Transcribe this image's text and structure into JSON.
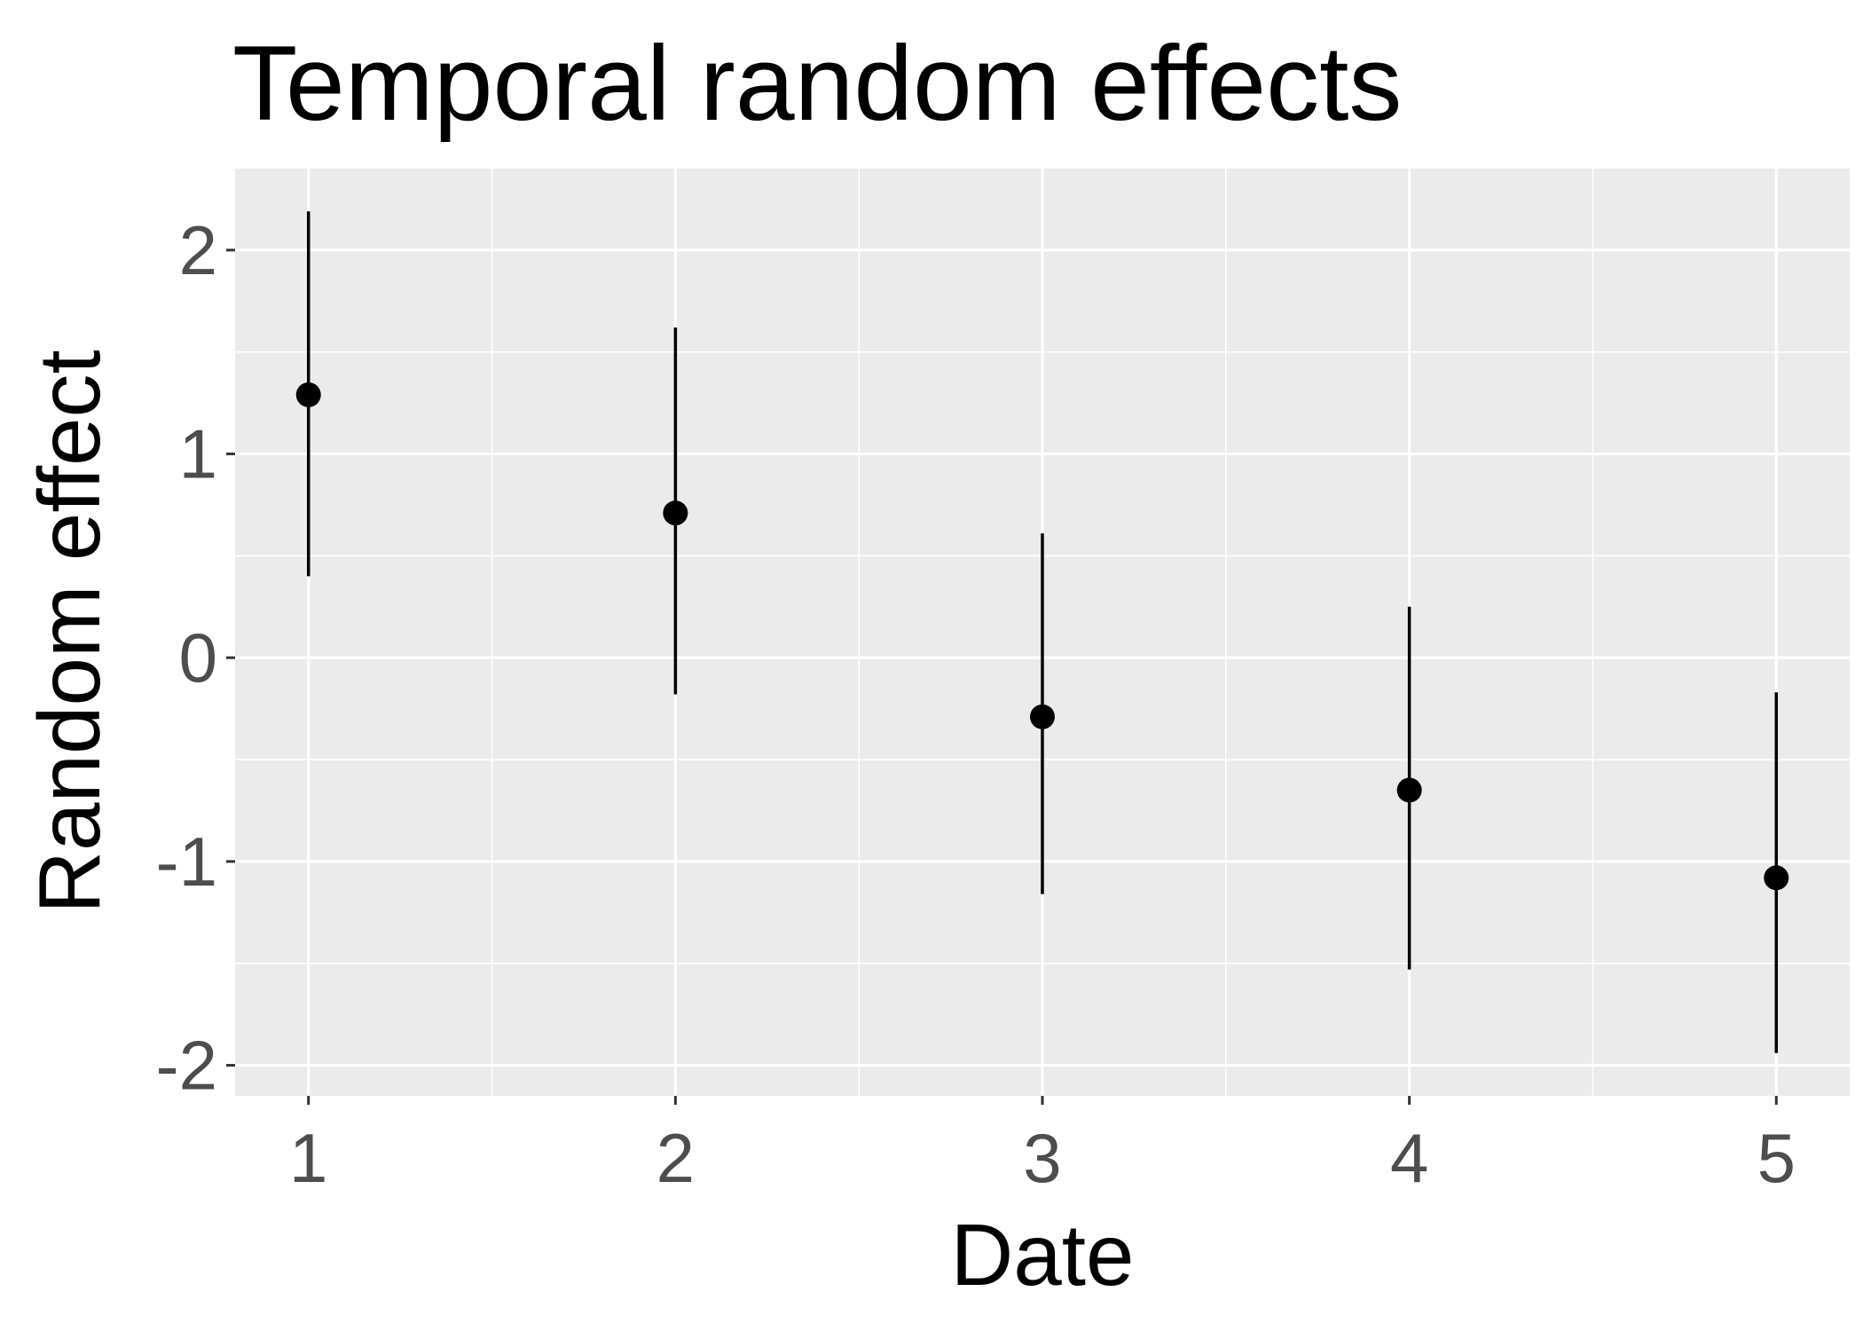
{
  "chart_data": {
    "type": "scatter",
    "title": "Temporal random effects",
    "xlabel": "Date",
    "ylabel": "Random effect",
    "x": [
      1,
      2,
      3,
      4,
      5
    ],
    "x_ticks": [
      "1",
      "2",
      "3",
      "4",
      "5"
    ],
    "y_ticks": [
      "-2",
      "-1",
      "0",
      "1",
      "2"
    ],
    "xlim": [
      0.8,
      5.2
    ],
    "ylim": [
      -2.15,
      2.4
    ],
    "series": [
      {
        "estimate": [
          1.29,
          0.71,
          -0.29,
          -0.65,
          -1.08
        ],
        "lower": [
          0.4,
          -0.18,
          -1.16,
          -1.53,
          -1.94
        ],
        "upper": [
          2.19,
          1.62,
          0.61,
          0.25,
          -0.17
        ]
      }
    ],
    "grid": true,
    "legend": "none",
    "colors": {
      "panel": "#ebebeb",
      "grid": "#ffffff",
      "mark": "#000000",
      "tick_text": "#4d4d4d"
    }
  }
}
